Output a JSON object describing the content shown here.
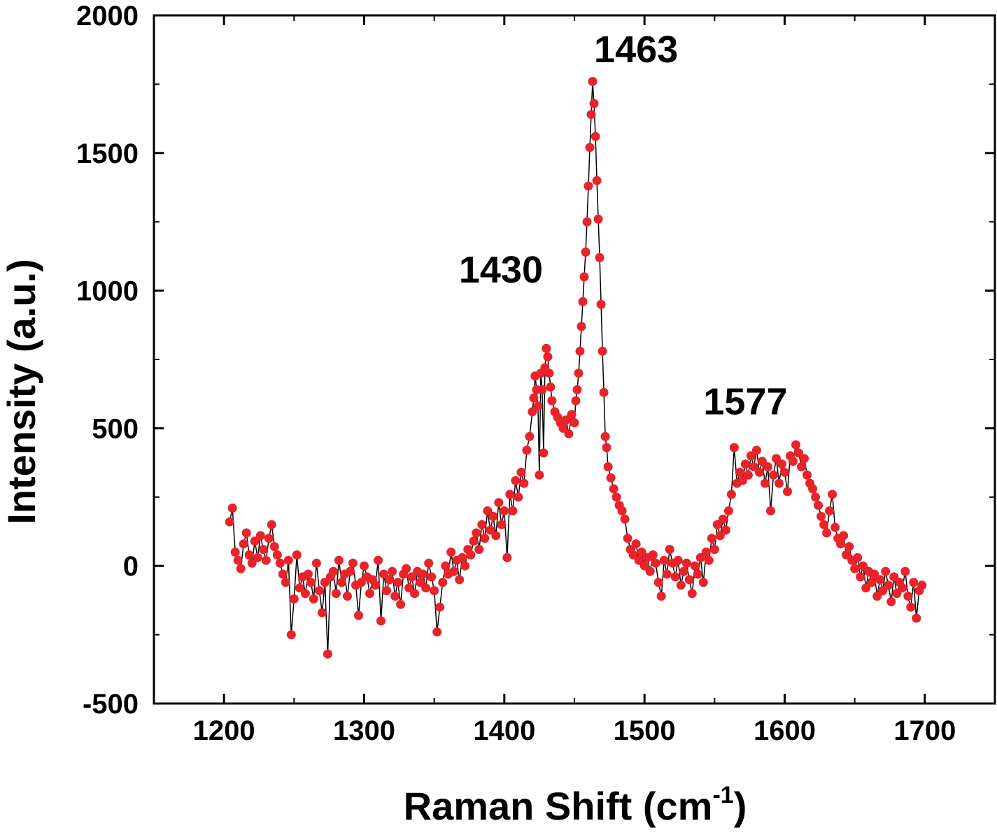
{
  "chart_data": {
    "type": "scatter",
    "title": "",
    "xlabel": "Raman Shift (cm",
    "xlabel_sup": "-1",
    "xlabel_end": ")",
    "ylabel": "Intensity (a.u.)",
    "xlim": [
      1150,
      1750
    ],
    "ylim": [
      -500,
      2000
    ],
    "x_ticks": [
      "1200",
      "1300",
      "1400",
      "1500",
      "1600",
      "1700"
    ],
    "y_ticks": [
      "-500",
      "0",
      "500",
      "1000",
      "1500",
      "2000"
    ],
    "grid": false,
    "legend": "none",
    "marker_color": "#e8232a",
    "line_color": "#000000",
    "annotations": [
      {
        "text": "1430",
        "x": 1430,
        "y": 1030
      },
      {
        "text": "1463",
        "x": 1463,
        "y": 1830
      },
      {
        "text": "1577",
        "x": 1577,
        "y": 550
      }
    ],
    "series": [
      {
        "name": "",
        "points": [
          [
            1204,
            160
          ],
          [
            1206,
            210
          ],
          [
            1208,
            50
          ],
          [
            1210,
            20
          ],
          [
            1212,
            -10
          ],
          [
            1214,
            80
          ],
          [
            1216,
            120
          ],
          [
            1218,
            40
          ],
          [
            1220,
            10
          ],
          [
            1222,
            90
          ],
          [
            1224,
            30
          ],
          [
            1226,
            110
          ],
          [
            1228,
            60
          ],
          [
            1230,
            20
          ],
          [
            1232,
            100
          ],
          [
            1234,
            150
          ],
          [
            1236,
            70
          ],
          [
            1238,
            40
          ],
          [
            1240,
            10
          ],
          [
            1242,
            -30
          ],
          [
            1244,
            -60
          ],
          [
            1246,
            20
          ],
          [
            1248,
            -250
          ],
          [
            1250,
            -120
          ],
          [
            1252,
            40
          ],
          [
            1254,
            -80
          ],
          [
            1256,
            -40
          ],
          [
            1258,
            -100
          ],
          [
            1260,
            -30
          ],
          [
            1262,
            -60
          ],
          [
            1264,
            -120
          ],
          [
            1266,
            10
          ],
          [
            1268,
            -90
          ],
          [
            1270,
            -170
          ],
          [
            1272,
            -60
          ],
          [
            1274,
            -320
          ],
          [
            1276,
            -40
          ],
          [
            1278,
            -20
          ],
          [
            1280,
            -100
          ],
          [
            1282,
            20
          ],
          [
            1284,
            -60
          ],
          [
            1286,
            -30
          ],
          [
            1288,
            -110
          ],
          [
            1290,
            -20
          ],
          [
            1292,
            10
          ],
          [
            1294,
            -70
          ],
          [
            1296,
            -180
          ],
          [
            1298,
            -60
          ],
          [
            1300,
            0
          ],
          [
            1302,
            -40
          ],
          [
            1304,
            -100
          ],
          [
            1306,
            -50
          ],
          [
            1308,
            -70
          ],
          [
            1310,
            20
          ],
          [
            1312,
            -200
          ],
          [
            1314,
            -30
          ],
          [
            1316,
            -90
          ],
          [
            1318,
            -50
          ],
          [
            1320,
            -20
          ],
          [
            1322,
            -110
          ],
          [
            1324,
            -60
          ],
          [
            1326,
            -140
          ],
          [
            1328,
            -30
          ],
          [
            1330,
            -10
          ],
          [
            1332,
            -80
          ],
          [
            1334,
            -40
          ],
          [
            1336,
            -100
          ],
          [
            1338,
            -20
          ],
          [
            1340,
            -60
          ],
          [
            1342,
            -30
          ],
          [
            1344,
            -80
          ],
          [
            1346,
            10
          ],
          [
            1348,
            -40
          ],
          [
            1350,
            -90
          ],
          [
            1352,
            -240
          ],
          [
            1354,
            -150
          ],
          [
            1356,
            -60
          ],
          [
            1358,
            0
          ],
          [
            1360,
            -30
          ],
          [
            1362,
            50
          ],
          [
            1364,
            -20
          ],
          [
            1366,
            20
          ],
          [
            1368,
            -50
          ],
          [
            1370,
            30
          ],
          [
            1372,
            0
          ],
          [
            1374,
            60
          ],
          [
            1376,
            40
          ],
          [
            1378,
            90
          ],
          [
            1380,
            120
          ],
          [
            1382,
            60
          ],
          [
            1384,
            150
          ],
          [
            1386,
            100
          ],
          [
            1388,
            200
          ],
          [
            1390,
            130
          ],
          [
            1392,
            180
          ],
          [
            1394,
            110
          ],
          [
            1396,
            230
          ],
          [
            1398,
            150
          ],
          [
            1400,
            200
          ],
          [
            1402,
            30
          ],
          [
            1404,
            260
          ],
          [
            1406,
            200
          ],
          [
            1408,
            310
          ],
          [
            1410,
            250
          ],
          [
            1412,
            340
          ],
          [
            1414,
            300
          ],
          [
            1416,
            420
          ],
          [
            1418,
            470
          ],
          [
            1420,
            560
          ],
          [
            1421,
            610
          ],
          [
            1422,
            690
          ],
          [
            1423,
            640
          ],
          [
            1424,
            580
          ],
          [
            1425,
            330
          ],
          [
            1426,
            700
          ],
          [
            1427,
            640
          ],
          [
            1428,
            410
          ],
          [
            1429,
            720
          ],
          [
            1430,
            790
          ],
          [
            1431,
            760
          ],
          [
            1432,
            700
          ],
          [
            1433,
            650
          ],
          [
            1434,
            600
          ],
          [
            1436,
            560
          ],
          [
            1438,
            540
          ],
          [
            1440,
            520
          ],
          [
            1442,
            500
          ],
          [
            1444,
            530
          ],
          [
            1446,
            480
          ],
          [
            1448,
            550
          ],
          [
            1450,
            520
          ],
          [
            1451,
            600
          ],
          [
            1452,
            640
          ],
          [
            1453,
            700
          ],
          [
            1454,
            780
          ],
          [
            1455,
            870
          ],
          [
            1456,
            960
          ],
          [
            1457,
            1050
          ],
          [
            1458,
            1140
          ],
          [
            1459,
            1250
          ],
          [
            1460,
            1380
          ],
          [
            1461,
            1520
          ],
          [
            1462,
            1640
          ],
          [
            1463,
            1760
          ],
          [
            1464,
            1680
          ],
          [
            1465,
            1560
          ],
          [
            1466,
            1400
          ],
          [
            1467,
            1260
          ],
          [
            1468,
            1120
          ],
          [
            1469,
            950
          ],
          [
            1470,
            780
          ],
          [
            1471,
            630
          ],
          [
            1472,
            470
          ],
          [
            1473,
            430
          ],
          [
            1474,
            360
          ],
          [
            1476,
            320
          ],
          [
            1478,
            280
          ],
          [
            1480,
            250
          ],
          [
            1482,
            220
          ],
          [
            1484,
            200
          ],
          [
            1486,
            170
          ],
          [
            1488,
            100
          ],
          [
            1490,
            60
          ],
          [
            1492,
            40
          ],
          [
            1494,
            80
          ],
          [
            1496,
            20
          ],
          [
            1498,
            50
          ],
          [
            1500,
            0
          ],
          [
            1502,
            30
          ],
          [
            1504,
            -20
          ],
          [
            1506,
            40
          ],
          [
            1508,
            10
          ],
          [
            1510,
            -60
          ],
          [
            1512,
            -110
          ],
          [
            1514,
            20
          ],
          [
            1516,
            -30
          ],
          [
            1518,
            60
          ],
          [
            1520,
            10
          ],
          [
            1522,
            -40
          ],
          [
            1524,
            20
          ],
          [
            1526,
            -70
          ],
          [
            1528,
            -20
          ],
          [
            1530,
            10
          ],
          [
            1532,
            -50
          ],
          [
            1534,
            -100
          ],
          [
            1536,
            0
          ],
          [
            1538,
            -30
          ],
          [
            1540,
            30
          ],
          [
            1542,
            -60
          ],
          [
            1544,
            50
          ],
          [
            1546,
            20
          ],
          [
            1548,
            100
          ],
          [
            1550,
            60
          ],
          [
            1552,
            150
          ],
          [
            1554,
            110
          ],
          [
            1556,
            170
          ],
          [
            1558,
            130
          ],
          [
            1560,
            200
          ],
          [
            1562,
            260
          ],
          [
            1564,
            430
          ],
          [
            1566,
            300
          ],
          [
            1568,
            340
          ],
          [
            1570,
            310
          ],
          [
            1572,
            370
          ],
          [
            1574,
            330
          ],
          [
            1576,
            400
          ],
          [
            1578,
            360
          ],
          [
            1580,
            420
          ],
          [
            1582,
            340
          ],
          [
            1584,
            380
          ],
          [
            1586,
            300
          ],
          [
            1588,
            360
          ],
          [
            1590,
            200
          ],
          [
            1592,
            330
          ],
          [
            1594,
            390
          ],
          [
            1596,
            300
          ],
          [
            1598,
            370
          ],
          [
            1600,
            340
          ],
          [
            1602,
            270
          ],
          [
            1604,
            400
          ],
          [
            1606,
            380
          ],
          [
            1608,
            440
          ],
          [
            1610,
            410
          ],
          [
            1612,
            360
          ],
          [
            1614,
            390
          ],
          [
            1616,
            330
          ],
          [
            1618,
            300
          ],
          [
            1620,
            280
          ],
          [
            1622,
            250
          ],
          [
            1624,
            220
          ],
          [
            1626,
            180
          ],
          [
            1628,
            150
          ],
          [
            1630,
            120
          ],
          [
            1632,
            200
          ],
          [
            1634,
            260
          ],
          [
            1636,
            140
          ],
          [
            1638,
            100
          ],
          [
            1640,
            80
          ],
          [
            1642,
            110
          ],
          [
            1644,
            40
          ],
          [
            1646,
            70
          ],
          [
            1648,
            20
          ],
          [
            1650,
            -10
          ],
          [
            1652,
            30
          ],
          [
            1654,
            -40
          ],
          [
            1656,
            0
          ],
          [
            1658,
            -80
          ],
          [
            1660,
            -20
          ],
          [
            1662,
            -60
          ],
          [
            1664,
            -30
          ],
          [
            1666,
            -110
          ],
          [
            1668,
            -50
          ],
          [
            1670,
            -90
          ],
          [
            1672,
            -20
          ],
          [
            1674,
            -70
          ],
          [
            1676,
            -130
          ],
          [
            1678,
            -40
          ],
          [
            1680,
            -100
          ],
          [
            1682,
            -60
          ],
          [
            1684,
            -80
          ],
          [
            1686,
            -20
          ],
          [
            1688,
            -110
          ],
          [
            1690,
            -150
          ],
          [
            1692,
            -60
          ],
          [
            1694,
            -190
          ],
          [
            1696,
            -90
          ],
          [
            1698,
            -70
          ]
        ]
      }
    ]
  }
}
